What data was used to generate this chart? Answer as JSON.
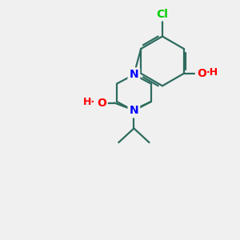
{
  "bg_color": "#f0f0f0",
  "bond_color": "#2d6b5e",
  "atom_colors": {
    "N": "#0000ff",
    "O": "#ff0000",
    "Cl": "#00cc00",
    "C": "#2d6b5e"
  },
  "bond_width": 1.6,
  "font_size_atom": 10
}
